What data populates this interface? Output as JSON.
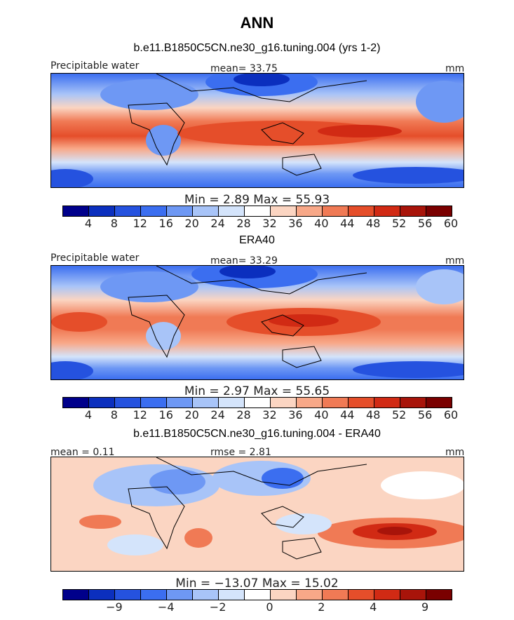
{
  "title": "ANN",
  "palette": [
    "#00008b",
    "#0b2fbe",
    "#2552df",
    "#3b6ef0",
    "#6e98f4",
    "#a8c4f8",
    "#d4e4fb",
    "#ffffff",
    "#fbd5c2",
    "#f8a888",
    "#f07a55",
    "#e54e2a",
    "#d12a14",
    "#a8140a",
    "#7a0000"
  ],
  "panels": [
    {
      "title": "b.e11.B1850C5CN.ne30_g16.tuning.004 (yrs 1-2)",
      "left_label": "Precipitable water",
      "center_label": "mean=  33.75",
      "right_label": "mm",
      "stats": "Min =    2.89  Max =   55.93",
      "ticks": [
        "4",
        "8",
        "12",
        "16",
        "20",
        "24",
        "28",
        "32",
        "36",
        "40",
        "44",
        "48",
        "52",
        "56",
        "60"
      ]
    },
    {
      "title": "ERA40",
      "left_label": "Precipitable water",
      "center_label": "mean=  33.29",
      "right_label": "mm",
      "stats": "Min =    2.97  Max =   55.65",
      "ticks": [
        "4",
        "8",
        "12",
        "16",
        "20",
        "24",
        "28",
        "32",
        "36",
        "40",
        "44",
        "48",
        "52",
        "56",
        "60"
      ]
    },
    {
      "title": "b.e11.B1850C5CN.ne30_g16.tuning.004 - ERA40",
      "left_label": "mean =   0.11",
      "center_label": "rmse =   2.81",
      "right_label": "mm",
      "stats": "Min = −13.07  Max =  15.02",
      "ticks": [
        "−9",
        "−4",
        "−2",
        "0",
        "2",
        "4",
        "9"
      ]
    }
  ],
  "chart_data": [
    {
      "type": "heatmap",
      "title": "b.e11.B1850C5CN.ne30_g16.tuning.004 (yrs 1-2)",
      "variable": "Precipitable water",
      "units": "mm",
      "mean": 33.75,
      "min": 2.89,
      "max": 55.93,
      "colorbar_levels": [
        4,
        8,
        12,
        16,
        20,
        24,
        28,
        32,
        36,
        40,
        44,
        48,
        52,
        56,
        60
      ]
    },
    {
      "type": "heatmap",
      "title": "ERA40",
      "variable": "Precipitable water",
      "units": "mm",
      "mean": 33.29,
      "min": 2.97,
      "max": 55.65,
      "colorbar_levels": [
        4,
        8,
        12,
        16,
        20,
        24,
        28,
        32,
        36,
        40,
        44,
        48,
        52,
        56,
        60
      ]
    },
    {
      "type": "heatmap",
      "title": "b.e11.B1850C5CN.ne30_g16.tuning.004 - ERA40",
      "units": "mm",
      "mean": 0.11,
      "rmse": 2.81,
      "min": -13.07,
      "max": 15.02,
      "colorbar_levels": [
        -9,
        -4,
        -2,
        0,
        2,
        4,
        9
      ]
    }
  ]
}
